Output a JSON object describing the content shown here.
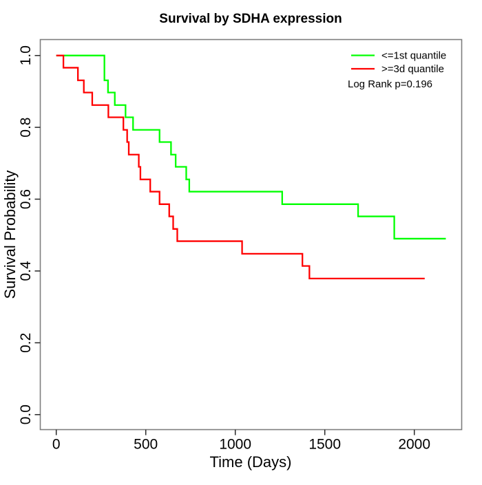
{
  "chart_data": {
    "type": "line",
    "subtype": "kaplan-meier-step",
    "title": "Survival by SDHA expression",
    "xlabel": "Time (Days)",
    "ylabel": "Survival Probability",
    "xlim": [
      0,
      2262
    ],
    "ylim": [
      0.0,
      1.0
    ],
    "xticks": [
      0,
      500,
      1000,
      1500,
      2000
    ],
    "yticks": [
      0.0,
      0.2,
      0.4,
      0.6,
      0.8,
      1.0
    ],
    "grid": false,
    "legend_position": "top-right",
    "annotation": "Log Rank p=0.196",
    "series": [
      {
        "name": "<=1st quantile",
        "color": "#00ff00",
        "steps": [
          [
            0,
            1.0
          ],
          [
            269,
            0.931
          ],
          [
            289,
            0.897
          ],
          [
            327,
            0.862
          ],
          [
            387,
            0.828
          ],
          [
            429,
            0.793
          ],
          [
            577,
            0.759
          ],
          [
            641,
            0.724
          ],
          [
            667,
            0.69
          ],
          [
            726,
            0.655
          ],
          [
            743,
            0.621
          ],
          [
            1262,
            0.586
          ],
          [
            1686,
            0.552
          ],
          [
            1888,
            0.49
          ],
          [
            2176,
            0.49
          ]
        ]
      },
      {
        "name": ">=3d quantile",
        "color": "#ff0000",
        "steps": [
          [
            0,
            1.0
          ],
          [
            40,
            0.966
          ],
          [
            121,
            0.931
          ],
          [
            154,
            0.897
          ],
          [
            201,
            0.862
          ],
          [
            291,
            0.828
          ],
          [
            375,
            0.793
          ],
          [
            396,
            0.759
          ],
          [
            405,
            0.724
          ],
          [
            461,
            0.69
          ],
          [
            470,
            0.655
          ],
          [
            525,
            0.621
          ],
          [
            577,
            0.586
          ],
          [
            631,
            0.552
          ],
          [
            653,
            0.517
          ],
          [
            676,
            0.483
          ],
          [
            1038,
            0.448
          ],
          [
            1375,
            0.414
          ],
          [
            1414,
            0.379
          ],
          [
            2058,
            0.379
          ]
        ]
      }
    ]
  }
}
